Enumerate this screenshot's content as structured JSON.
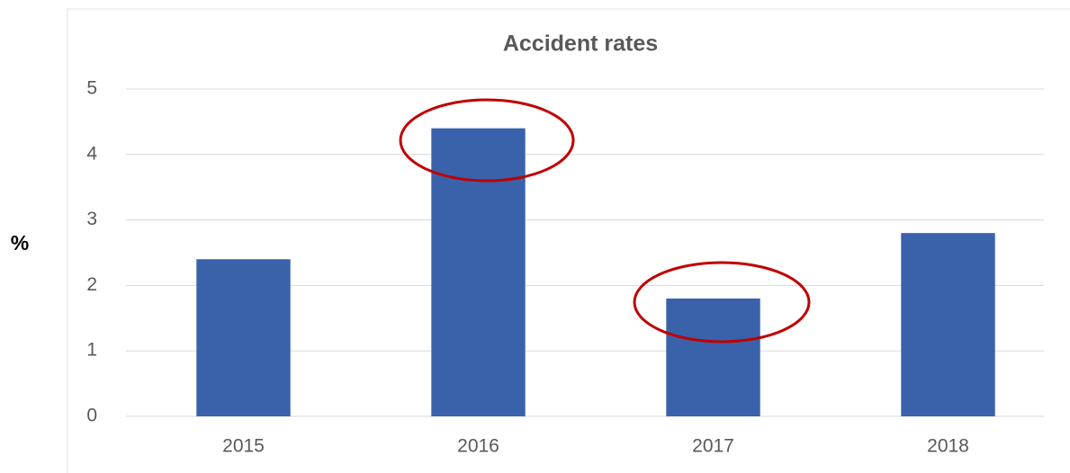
{
  "chart_data": {
    "type": "bar",
    "title": "Accident rates",
    "y_label": "%",
    "categories": [
      "2015",
      "2016",
      "2017",
      "2018"
    ],
    "values": [
      2.4,
      4.4,
      1.8,
      2.8
    ],
    "color": "#3a62ab",
    "ylim": [
      0,
      5
    ],
    "yticks": [
      0,
      1,
      2,
      3,
      4,
      5
    ],
    "grid": true
  }
}
